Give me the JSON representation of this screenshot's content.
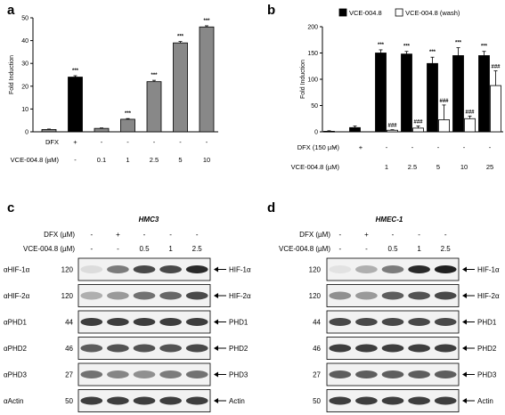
{
  "chart_data": [
    {
      "panel": "a",
      "type": "bar",
      "ylabel": "Fold Induction",
      "ylim": [
        0,
        50
      ],
      "yticks": [
        0,
        10,
        20,
        30,
        40,
        50
      ],
      "conditions": [
        {
          "label": "DFX",
          "values": [
            "-",
            "+",
            "-",
            "-",
            "-",
            "-",
            "-"
          ]
        },
        {
          "label": "VCE-004.8 (µM)",
          "values": [
            "-",
            "-",
            "0.1",
            "1",
            "2.5",
            "5",
            "10"
          ]
        }
      ],
      "series": [
        {
          "values": [
            1,
            24,
            1.5,
            5.5,
            22,
            39,
            46
          ],
          "errors": [
            0.2,
            0.6,
            0.2,
            0.3,
            0.6,
            0.6,
            0.5
          ],
          "annotations": [
            "",
            "***",
            "",
            "***",
            "***",
            "***",
            "***"
          ],
          "colors": [
            "#888888",
            "#000000",
            "#888888",
            "#888888",
            "#888888",
            "#888888",
            "#888888"
          ]
        }
      ]
    },
    {
      "panel": "b",
      "type": "bar",
      "ylabel": "Fold Induction",
      "ylim": [
        0,
        200
      ],
      "yticks": [
        0,
        50,
        100,
        150,
        200
      ],
      "legend": [
        "VCE-004.8",
        "VCE-004.8 (wash)"
      ],
      "conditions": [
        {
          "label": "DFX (150 µM)",
          "values": [
            "-",
            "+",
            "-",
            "-",
            "-",
            "-",
            "-"
          ]
        },
        {
          "label": "VCE-004.8 (µM)",
          "values": [
            "",
            "",
            "1",
            "2.5",
            "5",
            "10",
            "25"
          ]
        }
      ],
      "series": [
        {
          "name": "VCE-004.8",
          "color": "#000000",
          "values": [
            1,
            8,
            150,
            148,
            130,
            145,
            145
          ],
          "errors": [
            1,
            3,
            6,
            5,
            12,
            15,
            8
          ],
          "annotations": [
            "",
            "",
            "***",
            "***",
            "***",
            "***",
            "***"
          ]
        },
        {
          "name": "VCE-004.8 (wash)",
          "color": "#ffffff",
          "values": [
            null,
            null,
            3,
            7,
            23,
            25,
            88
          ],
          "errors": [
            0,
            0,
            1,
            4,
            28,
            5,
            28
          ],
          "annotations": [
            "",
            "",
            "###",
            "###",
            "###",
            "###",
            "###"
          ]
        }
      ]
    }
  ],
  "blots": [
    {
      "panel": "c",
      "title": "HMC3",
      "conditions": [
        {
          "label": "DFX (µM)",
          "values": [
            "-",
            "+",
            "-",
            "-",
            "-"
          ]
        },
        {
          "label": "VCE-004.8 (µM)",
          "values": [
            "-",
            "-",
            "0.5",
            "1",
            "2.5"
          ]
        }
      ],
      "rows": [
        {
          "antibody": "αHIF-1α",
          "mw": "120",
          "protein": "HIF-1α",
          "intensity": [
            0.08,
            0.55,
            0.8,
            0.8,
            0.95
          ]
        },
        {
          "antibody": "αHIF-2α",
          "mw": "120",
          "protein": "HIF-2α",
          "intensity": [
            0.3,
            0.4,
            0.6,
            0.65,
            0.8
          ]
        },
        {
          "antibody": "αPHD1",
          "mw": "44",
          "protein": "PHD1",
          "intensity": [
            0.85,
            0.85,
            0.85,
            0.85,
            0.85
          ]
        },
        {
          "antibody": "αPHD2",
          "mw": "46",
          "protein": "PHD2",
          "intensity": [
            0.7,
            0.75,
            0.75,
            0.75,
            0.8
          ]
        },
        {
          "antibody": "αPHD3",
          "mw": "27",
          "protein": "PHD3",
          "intensity": [
            0.6,
            0.5,
            0.45,
            0.55,
            0.6
          ]
        },
        {
          "antibody": "αActin",
          "mw": "50",
          "protein": "Actin",
          "intensity": [
            0.85,
            0.85,
            0.85,
            0.85,
            0.85
          ]
        }
      ]
    },
    {
      "panel": "d",
      "title": "HMEC-1",
      "conditions": [
        {
          "label": "DFX (µM)",
          "values": [
            "-",
            "+",
            "-",
            "-",
            "-"
          ]
        },
        {
          "label": "VCE-004.8 (µM)",
          "values": [
            "-",
            "-",
            "0.5",
            "1",
            "2.5"
          ]
        }
      ],
      "rows": [
        {
          "antibody": "",
          "mw": "120",
          "protein": "HIF-1α",
          "intensity": [
            0.05,
            0.3,
            0.55,
            0.95,
            1.0
          ]
        },
        {
          "antibody": "",
          "mw": "120",
          "protein": "HIF-2α",
          "intensity": [
            0.45,
            0.4,
            0.7,
            0.75,
            0.8
          ]
        },
        {
          "antibody": "",
          "mw": "44",
          "protein": "PHD1",
          "intensity": [
            0.8,
            0.8,
            0.8,
            0.8,
            0.8
          ]
        },
        {
          "antibody": "",
          "mw": "46",
          "protein": "PHD2",
          "intensity": [
            0.85,
            0.85,
            0.85,
            0.85,
            0.85
          ]
        },
        {
          "antibody": "",
          "mw": "27",
          "protein": "PHD3",
          "intensity": [
            0.7,
            0.7,
            0.7,
            0.7,
            0.7
          ]
        },
        {
          "antibody": "",
          "mw": "50",
          "protein": "Actin",
          "intensity": [
            0.85,
            0.85,
            0.85,
            0.85,
            0.85
          ]
        }
      ]
    }
  ]
}
